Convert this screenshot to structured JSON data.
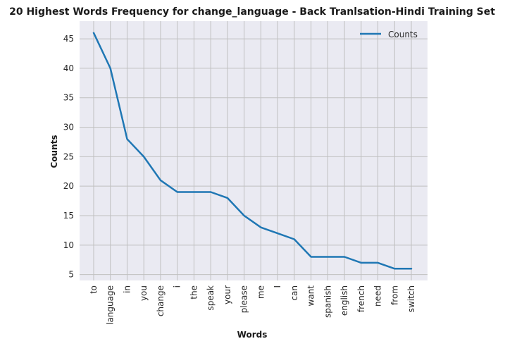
{
  "chart_data": {
    "type": "line",
    "title": "20 Highest Words Frequency for change_language - Back Tranlsation-Hindi Training Set",
    "xlabel": "Words",
    "ylabel": "Counts",
    "categories": [
      "to",
      "language",
      "in",
      "you",
      "change",
      "i",
      "the",
      "speak",
      "your",
      "please",
      "me",
      "I",
      "can",
      "want",
      "spanish",
      "english",
      "french",
      "need",
      "from",
      "switch"
    ],
    "series": [
      {
        "name": "Counts",
        "values": [
          46,
          40,
          28,
          25,
          21,
          19,
          19,
          19,
          18,
          15,
          13,
          12,
          11,
          8,
          8,
          8,
          7,
          7,
          6,
          6
        ]
      }
    ],
    "yticks": [
      5,
      10,
      15,
      20,
      25,
      30,
      35,
      40,
      45
    ],
    "ylim": [
      4,
      48
    ],
    "grid": true,
    "legend_position": "top-right",
    "colors": {
      "line": "#1f77b4",
      "plot_bg": "#eaeaf2",
      "grid": "#c0c0c0"
    }
  }
}
